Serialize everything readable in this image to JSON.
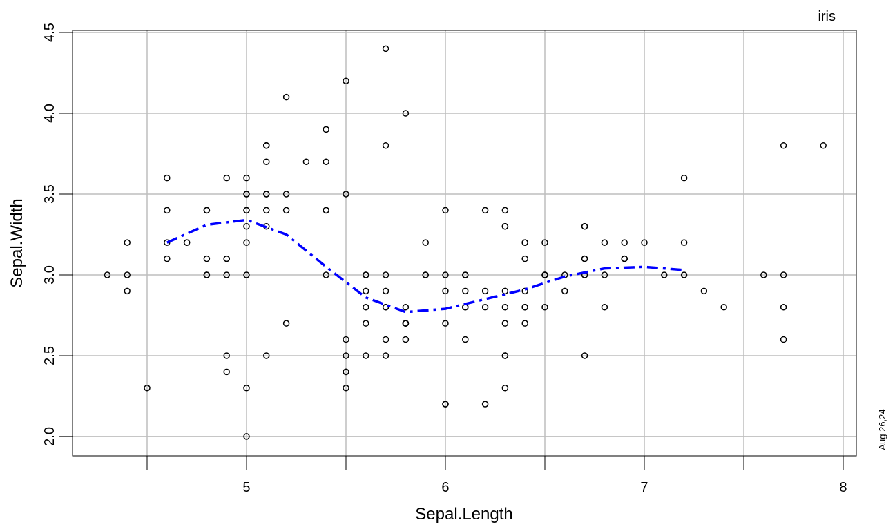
{
  "chart_data": {
    "type": "scatter",
    "title": "iris",
    "caption": "Aug 26,24",
    "xlabel": "Sepal.Length",
    "ylabel": "Sepal.Width",
    "xlim": [
      4.125,
      8.066
    ],
    "ylim": [
      1.88,
      4.513
    ],
    "xticks": [
      5,
      6,
      7,
      8
    ],
    "xminorticks": [
      4.5,
      5.5,
      6.5,
      7.5
    ],
    "yticks": [
      {
        "value": 2,
        "label": "2.0"
      },
      2.5,
      {
        "value": 3,
        "label": "3.0"
      },
      3.5,
      {
        "value": 4,
        "label": "4.0"
      },
      4.5
    ],
    "grid": true,
    "x": [
      5.1,
      4.9,
      4.7,
      4.6,
      5.0,
      5.4,
      4.6,
      5.0,
      4.4,
      4.9,
      5.4,
      4.8,
      4.8,
      4.3,
      5.8,
      5.7,
      5.4,
      5.1,
      5.7,
      5.1,
      5.4,
      5.1,
      4.6,
      5.1,
      4.8,
      5.0,
      5.0,
      5.2,
      5.2,
      4.7,
      4.8,
      5.4,
      5.2,
      5.5,
      4.9,
      5.0,
      5.5,
      4.9,
      4.4,
      5.1,
      5.0,
      4.5,
      4.4,
      5.0,
      5.1,
      4.8,
      5.1,
      4.6,
      5.3,
      5.0,
      7.0,
      6.4,
      6.9,
      5.5,
      6.5,
      5.7,
      6.3,
      4.9,
      6.6,
      5.2,
      5.0,
      5.9,
      6.0,
      6.1,
      5.6,
      6.7,
      5.6,
      5.8,
      6.2,
      5.6,
      5.9,
      6.1,
      6.3,
      6.1,
      6.4,
      6.6,
      6.8,
      6.7,
      6.0,
      5.7,
      5.5,
      5.5,
      5.8,
      6.0,
      5.4,
      6.0,
      6.7,
      6.3,
      5.6,
      5.5,
      5.5,
      6.1,
      5.8,
      5.0,
      5.6,
      5.7,
      5.7,
      6.2,
      5.1,
      5.7,
      6.3,
      5.8,
      7.1,
      6.3,
      6.5,
      7.6,
      4.9,
      7.3,
      6.7,
      7.2,
      6.5,
      6.4,
      6.8,
      5.7,
      5.8,
      6.4,
      6.5,
      7.7,
      7.7,
      6.0,
      6.9,
      5.6,
      7.7,
      6.3,
      6.7,
      7.2,
      6.2,
      6.1,
      6.4,
      7.2,
      7.4,
      7.9,
      6.4,
      6.3,
      6.1,
      7.7,
      6.3,
      6.4,
      6.0,
      6.9,
      6.7,
      6.9,
      5.8,
      6.8,
      6.7,
      6.7,
      6.3,
      6.5,
      6.2,
      5.9
    ],
    "series": [
      {
        "color": "#000000",
        "values": [
          3.5,
          3.0,
          3.2,
          3.1,
          3.6,
          3.9,
          3.4,
          3.4,
          2.9,
          3.1,
          3.7,
          3.4,
          3.0,
          3.0,
          4.0,
          4.4,
          3.9,
          3.5,
          3.8,
          3.8,
          3.4,
          3.7,
          3.6,
          3.3,
          3.4,
          3.0,
          3.4,
          3.5,
          3.4,
          3.2,
          3.1,
          3.4,
          4.1,
          4.2,
          3.1,
          3.2,
          3.5,
          3.6,
          3.0,
          3.4,
          3.5,
          2.3,
          3.2,
          3.5,
          3.8,
          3.0,
          3.8,
          3.2,
          3.7,
          3.3,
          3.2,
          3.2,
          3.1,
          2.3,
          2.8,
          2.8,
          3.3,
          2.4,
          2.9,
          2.7,
          2.0,
          3.0,
          2.2,
          2.9,
          2.9,
          3.1,
          3.0,
          2.7,
          2.2,
          2.5,
          3.2,
          2.8,
          2.5,
          2.8,
          2.9,
          3.0,
          2.8,
          3.0,
          2.9,
          2.6,
          2.4,
          2.4,
          2.7,
          2.7,
          3.0,
          3.4,
          3.1,
          2.3,
          3.0,
          2.5,
          2.6,
          3.0,
          2.6,
          2.3,
          2.7,
          3.0,
          2.9,
          2.9,
          2.5,
          2.8,
          3.3,
          2.7,
          3.0,
          2.9,
          3.0,
          3.0,
          2.5,
          2.9,
          2.5,
          3.6,
          3.2,
          2.7,
          3.0,
          2.5,
          2.8,
          3.2,
          3.0,
          3.8,
          2.6,
          2.2,
          3.2,
          2.8,
          2.8,
          2.7,
          3.3,
          3.2,
          2.8,
          3.0,
          2.8,
          3.0,
          2.8,
          3.8,
          2.8,
          2.8,
          2.6,
          3.0,
          3.4,
          3.1,
          3.0,
          3.1,
          3.1,
          3.1,
          2.7,
          3.2,
          3.3,
          3.0,
          2.5,
          3.0,
          3.4,
          3.0
        ]
      }
    ],
    "smooth": {
      "color": "#0000ff",
      "x": [
        4.6,
        4.8,
        5.0,
        5.2,
        5.4,
        5.6,
        5.8,
        6.0,
        6.2,
        6.4,
        6.6,
        6.8,
        7.0,
        7.2
      ],
      "values": [
        3.2,
        3.31,
        3.34,
        3.25,
        3.05,
        2.86,
        2.77,
        2.79,
        2.85,
        2.91,
        2.99,
        3.04,
        3.05,
        3.03
      ]
    }
  }
}
